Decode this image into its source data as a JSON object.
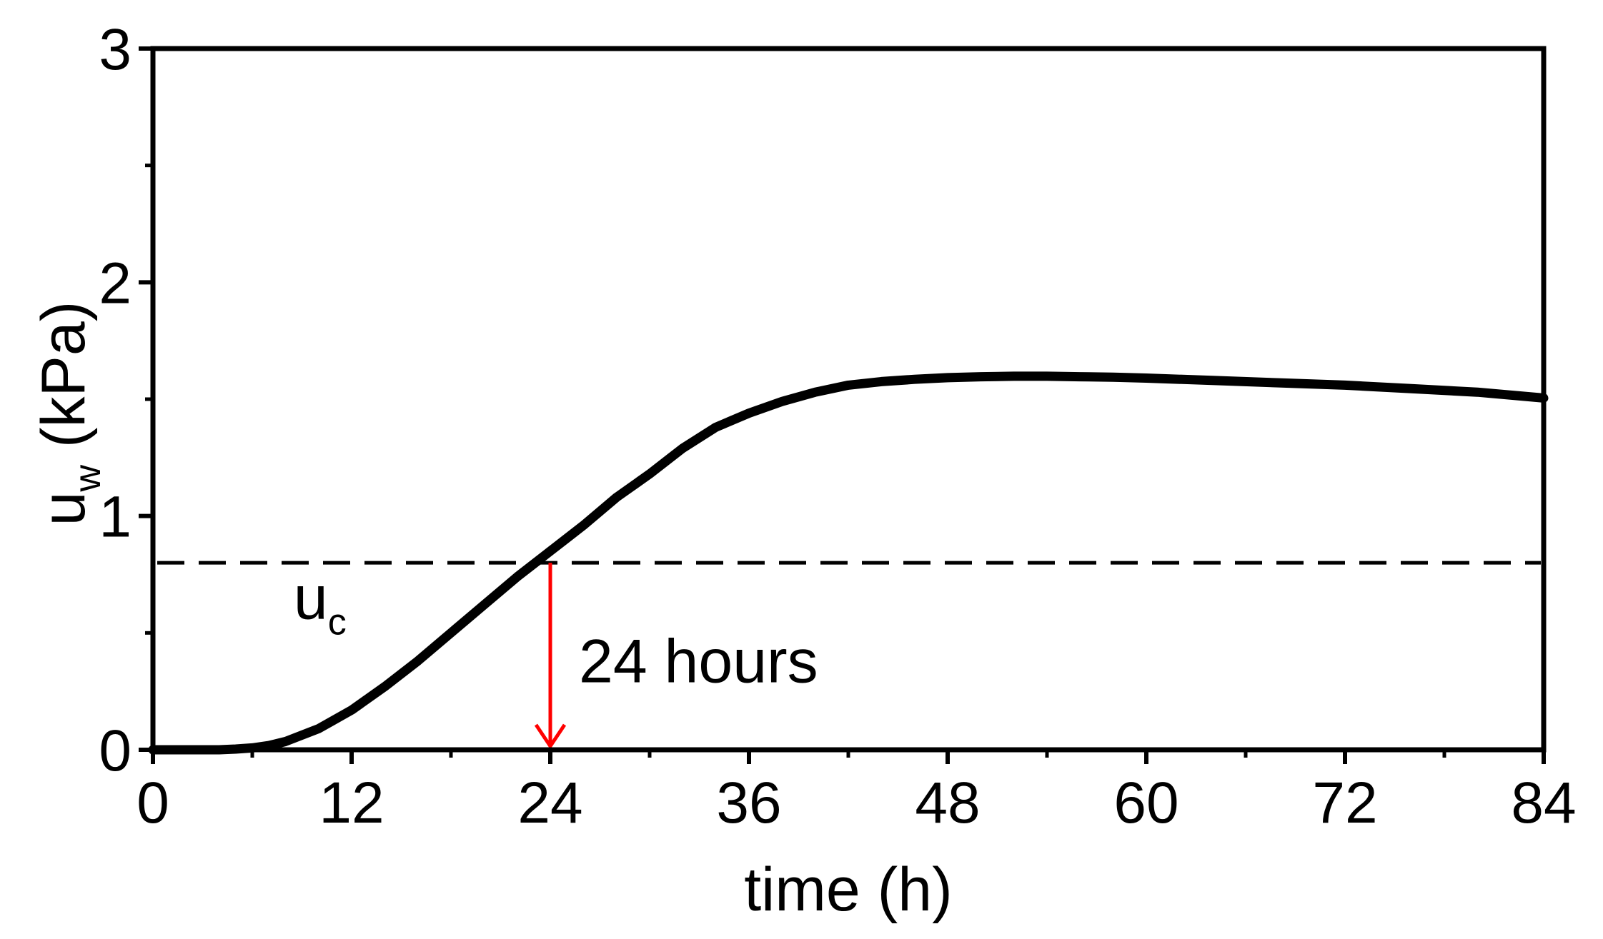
{
  "chart_data": {
    "type": "line",
    "xlabel": "time (h)",
    "ylabel_main": "u",
    "ylabel_sub": "w",
    "ylabel_unit": " (kPa)",
    "xlim": [
      0,
      84
    ],
    "ylim": [
      0,
      3
    ],
    "xticks": [
      "0",
      "12",
      "24",
      "36",
      "48",
      "60",
      "72",
      "84"
    ],
    "yticks": [
      "0",
      "1",
      "2",
      "3"
    ],
    "x_minor_step": 6,
    "y_minor_step": 0.5,
    "grid": false,
    "series": [
      {
        "color": "#000000",
        "x": [
          0,
          2,
          4,
          5,
          6,
          7,
          8,
          10,
          12,
          14,
          16,
          18,
          20,
          22,
          24,
          26,
          28,
          30,
          32,
          34,
          36,
          38,
          40,
          42,
          44,
          46,
          48,
          50,
          52,
          54,
          56,
          58,
          60,
          64,
          68,
          72,
          76,
          80,
          84
        ],
        "y": [
          0.0,
          0.0,
          0.0,
          0.003,
          0.008,
          0.018,
          0.035,
          0.09,
          0.17,
          0.27,
          0.38,
          0.5,
          0.62,
          0.74,
          0.85,
          0.96,
          1.08,
          1.18,
          1.29,
          1.38,
          1.44,
          1.49,
          1.53,
          1.56,
          1.575,
          1.585,
          1.592,
          1.596,
          1.598,
          1.598,
          1.596,
          1.594,
          1.59,
          1.58,
          1.57,
          1.56,
          1.545,
          1.53,
          1.505
        ]
      }
    ],
    "threshold": {
      "y": 0.8,
      "label_main": "u",
      "label_sub": "c",
      "style": "dashed",
      "color": "#000000"
    },
    "arrow": {
      "x": 24,
      "y_from": 0.8,
      "y_to": 0,
      "color": "#ff0000",
      "label": "24 hours"
    }
  }
}
